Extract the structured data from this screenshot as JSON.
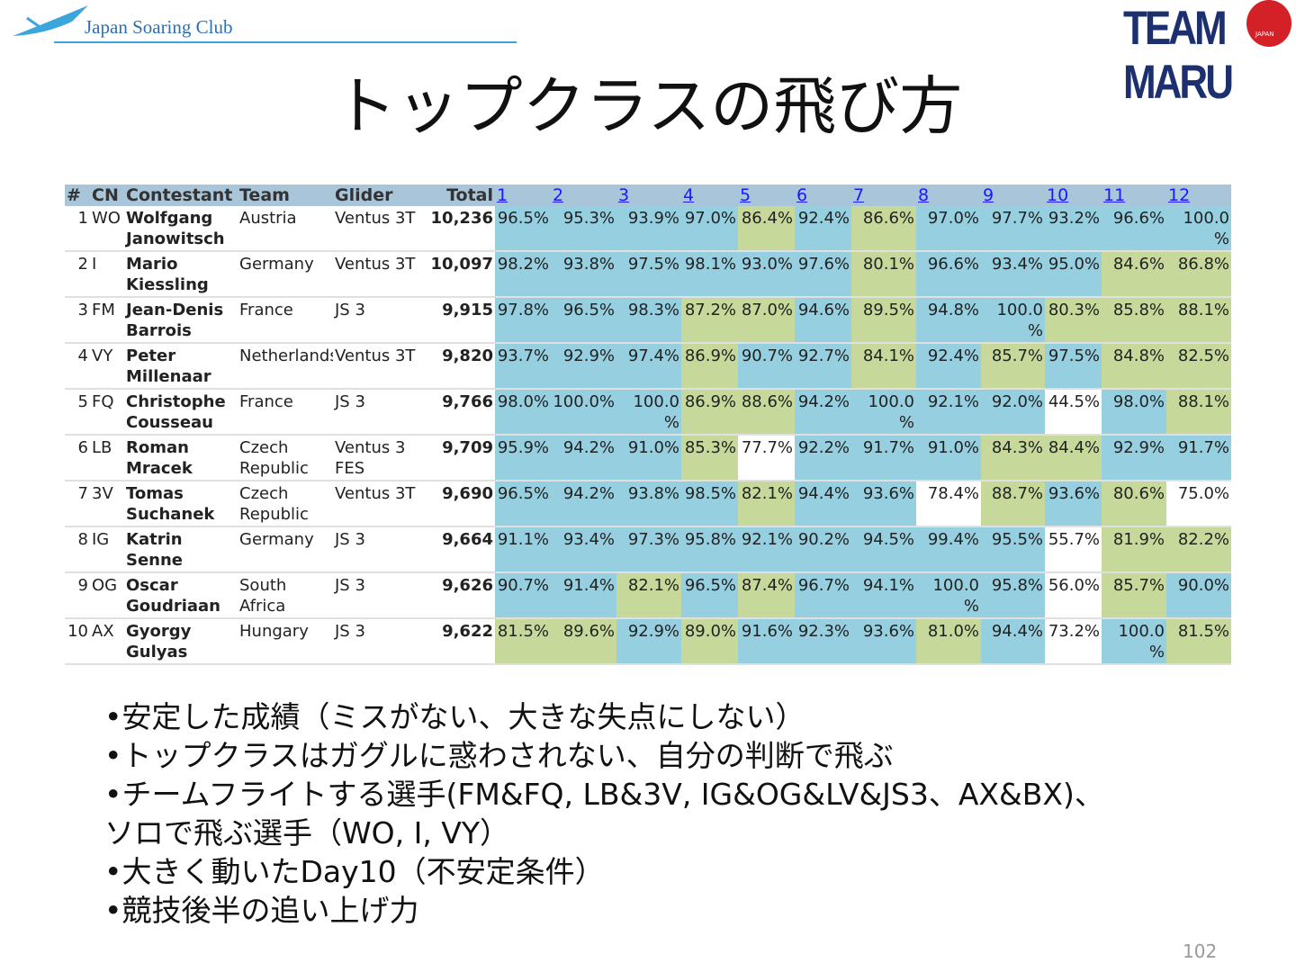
{
  "header": {
    "logo_left": "Japan Soaring Club",
    "logo_right": "TEAM MARU",
    "logo_right_badge": "JAPAN",
    "title": "トップクラスの飛び方"
  },
  "table": {
    "columns": [
      "#",
      "CN",
      "Contestant",
      "Team",
      "Glider",
      "Total"
    ],
    "day_columns": [
      "1",
      "2",
      "3",
      "4",
      "5",
      "6",
      "7",
      "8",
      "9",
      "10",
      "11",
      "12"
    ],
    "rows": [
      {
        "rank": "1",
        "cn": "WO",
        "contestant": "Wolfgang Janowitsch",
        "team": "Austria",
        "glider": "Ventus 3T",
        "total": "10,236",
        "days": [
          "96.5%",
          "95.3%",
          "93.9%",
          "97.0%",
          "86.4%",
          "92.4%",
          "86.6%",
          "97.0%",
          "97.7%",
          "93.2%",
          "96.6%",
          "100.0%"
        ],
        "day_colors": [
          "#95cfe0",
          "#95cfe0",
          "#95cfe0",
          "#95cfe0",
          "#c6d99b",
          "#95cfe0",
          "#c6d99b",
          "#95cfe0",
          "#95cfe0",
          "#95cfe0",
          "#95cfe0",
          "#95cfe0"
        ]
      },
      {
        "rank": "2",
        "cn": "I",
        "contestant": "Mario Kiessling",
        "team": "Germany",
        "glider": "Ventus 3T",
        "total": "10,097",
        "days": [
          "98.2%",
          "93.8%",
          "97.5%",
          "98.1%",
          "93.0%",
          "97.6%",
          "80.1%",
          "96.6%",
          "93.4%",
          "95.0%",
          "84.6%",
          "86.8%"
        ],
        "day_colors": [
          "#95cfe0",
          "#95cfe0",
          "#95cfe0",
          "#95cfe0",
          "#95cfe0",
          "#95cfe0",
          "#c6d99b",
          "#95cfe0",
          "#95cfe0",
          "#95cfe0",
          "#c6d99b",
          "#c6d99b"
        ]
      },
      {
        "rank": "3",
        "cn": "FM",
        "contestant": "Jean-Denis Barrois",
        "team": "France",
        "glider": "JS 3",
        "total": "9,915",
        "days": [
          "97.8%",
          "96.5%",
          "98.3%",
          "87.2%",
          "87.0%",
          "94.6%",
          "89.5%",
          "94.8%",
          "100.0%",
          "80.3%",
          "85.8%",
          "88.1%"
        ],
        "day_colors": [
          "#95cfe0",
          "#95cfe0",
          "#95cfe0",
          "#c6d99b",
          "#c6d99b",
          "#95cfe0",
          "#c6d99b",
          "#95cfe0",
          "#95cfe0",
          "#c6d99b",
          "#c6d99b",
          "#c6d99b"
        ]
      },
      {
        "rank": "4",
        "cn": "VY",
        "contestant": "Peter Millenaar",
        "team": "Netherlands",
        "glider": "Ventus 3T",
        "total": "9,820",
        "days": [
          "93.7%",
          "92.9%",
          "97.4%",
          "86.9%",
          "90.7%",
          "92.7%",
          "84.1%",
          "92.4%",
          "85.7%",
          "97.5%",
          "84.8%",
          "82.5%"
        ],
        "day_colors": [
          "#95cfe0",
          "#95cfe0",
          "#95cfe0",
          "#c6d99b",
          "#95cfe0",
          "#95cfe0",
          "#c6d99b",
          "#95cfe0",
          "#c6d99b",
          "#95cfe0",
          "#c6d99b",
          "#c6d99b"
        ]
      },
      {
        "rank": "5",
        "cn": "FQ",
        "contestant": "Christophe Cousseau",
        "team": "France",
        "glider": "JS 3",
        "total": "9,766",
        "days": [
          "98.0%",
          "100.0%",
          "100.0%",
          "86.9%",
          "88.6%",
          "94.2%",
          "100.0%",
          "92.1%",
          "92.0%",
          "44.5%",
          "98.0%",
          "88.1%"
        ],
        "day_colors": [
          "#95cfe0",
          "#95cfe0",
          "#95cfe0",
          "#c6d99b",
          "#c6d99b",
          "#95cfe0",
          "#95cfe0",
          "#95cfe0",
          "#95cfe0",
          "#ffffff",
          "#95cfe0",
          "#c6d99b"
        ]
      },
      {
        "rank": "6",
        "cn": "LB",
        "contestant": "Roman Mracek",
        "team": "Czech Republic",
        "glider": "Ventus 3 FES",
        "total": "9,709",
        "days": [
          "95.9%",
          "94.2%",
          "91.0%",
          "85.3%",
          "77.7%",
          "92.2%",
          "91.7%",
          "91.0%",
          "84.3%",
          "84.4%",
          "92.9%",
          "91.7%"
        ],
        "day_colors": [
          "#95cfe0",
          "#95cfe0",
          "#95cfe0",
          "#c6d99b",
          "#ffffff",
          "#95cfe0",
          "#95cfe0",
          "#95cfe0",
          "#c6d99b",
          "#c6d99b",
          "#95cfe0",
          "#95cfe0"
        ]
      },
      {
        "rank": "7",
        "cn": "3V",
        "contestant": "Tomas Suchanek",
        "team": "Czech Republic",
        "glider": "Ventus 3T",
        "total": "9,690",
        "days": [
          "96.5%",
          "94.2%",
          "93.8%",
          "98.5%",
          "82.1%",
          "94.4%",
          "93.6%",
          "78.4%",
          "88.7%",
          "93.6%",
          "80.6%",
          "75.0%"
        ],
        "day_colors": [
          "#95cfe0",
          "#95cfe0",
          "#95cfe0",
          "#95cfe0",
          "#c6d99b",
          "#95cfe0",
          "#95cfe0",
          "#ffffff",
          "#c6d99b",
          "#95cfe0",
          "#c6d99b",
          "#ffffff"
        ]
      },
      {
        "rank": "8",
        "cn": "IG",
        "contestant": "Katrin Senne",
        "team": "Germany",
        "glider": "JS 3",
        "total": "9,664",
        "days": [
          "91.1%",
          "93.4%",
          "97.3%",
          "95.8%",
          "92.1%",
          "90.2%",
          "94.5%",
          "99.4%",
          "95.5%",
          "55.7%",
          "81.9%",
          "82.2%"
        ],
        "day_colors": [
          "#95cfe0",
          "#95cfe0",
          "#95cfe0",
          "#95cfe0",
          "#95cfe0",
          "#95cfe0",
          "#95cfe0",
          "#95cfe0",
          "#95cfe0",
          "#ffffff",
          "#c6d99b",
          "#c6d99b"
        ]
      },
      {
        "rank": "9",
        "cn": "OG",
        "contestant": "Oscar Goudriaan",
        "team": "South Africa",
        "glider": "JS 3",
        "total": "9,626",
        "days": [
          "90.7%",
          "91.4%",
          "82.1%",
          "96.5%",
          "87.4%",
          "96.7%",
          "94.1%",
          "100.0%",
          "95.8%",
          "56.0%",
          "85.7%",
          "90.0%"
        ],
        "day_colors": [
          "#95cfe0",
          "#95cfe0",
          "#c6d99b",
          "#95cfe0",
          "#c6d99b",
          "#95cfe0",
          "#95cfe0",
          "#95cfe0",
          "#95cfe0",
          "#ffffff",
          "#c6d99b",
          "#95cfe0"
        ]
      },
      {
        "rank": "10",
        "cn": "AX",
        "contestant": "Gyorgy Gulyas",
        "team": "Hungary",
        "glider": "JS 3",
        "total": "9,622",
        "days": [
          "81.5%",
          "89.6%",
          "92.9%",
          "89.0%",
          "91.6%",
          "92.3%",
          "93.6%",
          "81.0%",
          "94.4%",
          "73.2%",
          "100.0%",
          "81.5%"
        ],
        "day_colors": [
          "#c6d99b",
          "#c6d99b",
          "#95cfe0",
          "#c6d99b",
          "#95cfe0",
          "#95cfe0",
          "#95cfe0",
          "#c6d99b",
          "#95cfe0",
          "#ffffff",
          "#95cfe0",
          "#c6d99b"
        ]
      }
    ]
  },
  "bullets": [
    "•安定した成績（ミスがない、大きな失点にしない）",
    "•トップクラスはガグルに惑わされない、自分の判断で飛ぶ",
    "•チームフライトする選手(FM&FQ, LB&3V, IG&OG&LV&JS3、AX&BX)、",
    "ソロで飛ぶ選手（WO, I, VY）",
    "•大きく動いたDay10（不安定条件）",
    "•競技後半の追い上げ力"
  ],
  "page_number": "102"
}
